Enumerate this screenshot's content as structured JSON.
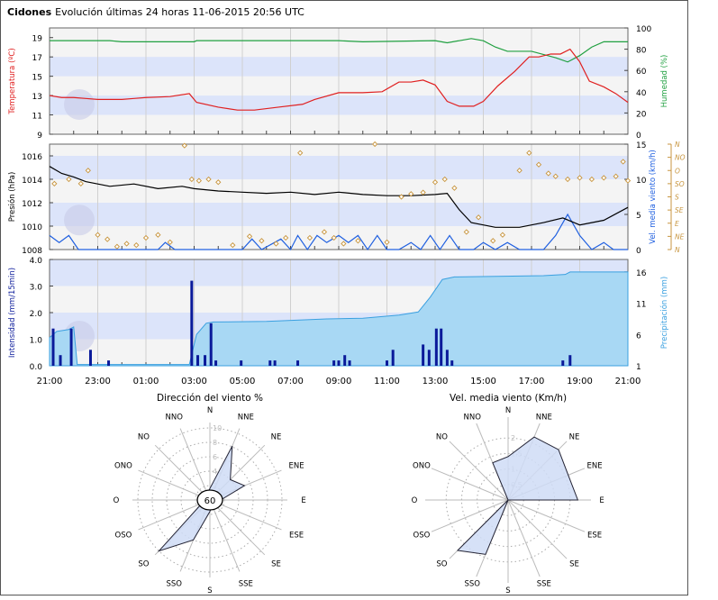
{
  "header": {
    "station": "Cidones",
    "subtitle": "Evolución últimas 24 horas 11-06-2015 20:56 UTC"
  },
  "x_ticks": [
    "21:00",
    "23:00",
    "01:00",
    "03:00",
    "05:00",
    "07:00",
    "09:00",
    "11:00",
    "13:00",
    "15:00",
    "17:00",
    "19:00",
    "21:00"
  ],
  "colors": {
    "temp": "#e02020",
    "hum": "#20a040",
    "pres": "#000000",
    "wind": "#2060e0",
    "dir": "#c89640",
    "intens": "#0a1a9a",
    "precip": "#3aa0e0"
  },
  "chart_data": [
    {
      "type": "line",
      "title": "Temperatura / Humedad",
      "ylabel": "Temperatura (ºC)",
      "y2label": "Humedad (%)",
      "ylim": [
        9,
        20
      ],
      "yticks": [
        "9",
        "11",
        "13",
        "15",
        "17",
        "19"
      ],
      "y2lim": [
        0,
        100
      ],
      "y2ticks": [
        "0",
        "20",
        "40",
        "60",
        "80",
        "100"
      ],
      "series": [
        {
          "name": "Temperatura",
          "axis": "y",
          "points": [
            [
              0,
              13.0
            ],
            [
              0.5,
              12.8
            ],
            [
              1,
              12.8
            ],
            [
              1.5,
              12.7
            ],
            [
              2,
              12.6
            ],
            [
              3,
              12.6
            ],
            [
              3.5,
              12.7
            ],
            [
              4,
              12.8
            ],
            [
              5,
              12.9
            ],
            [
              5.8,
              13.2
            ],
            [
              6.1,
              12.3
            ],
            [
              7,
              11.8
            ],
            [
              7.8,
              11.5
            ],
            [
              8.5,
              11.5
            ],
            [
              9.5,
              11.8
            ],
            [
              10.5,
              12.1
            ],
            [
              11,
              12.6
            ],
            [
              12,
              13.3
            ],
            [
              13,
              13.3
            ],
            [
              13.8,
              13.4
            ],
            [
              14.5,
              14.4
            ],
            [
              15,
              14.4
            ],
            [
              15.5,
              14.6
            ],
            [
              16,
              14.1
            ],
            [
              16.5,
              12.4
            ],
            [
              17,
              11.9
            ],
            [
              17.6,
              11.9
            ],
            [
              18,
              12.4
            ],
            [
              18.6,
              14.0
            ],
            [
              19.3,
              15.5
            ],
            [
              19.9,
              17.0
            ],
            [
              20.3,
              17.0
            ],
            [
              20.8,
              17.3
            ],
            [
              21.2,
              17.3
            ],
            [
              21.6,
              17.8
            ],
            [
              22,
              16.5
            ],
            [
              22.4,
              14.5
            ],
            [
              23,
              13.9
            ],
            [
              23.5,
              13.2
            ],
            [
              24,
              12.3
            ]
          ]
        },
        {
          "name": "Humedad",
          "axis": "y2",
          "points": [
            [
              0,
              88
            ],
            [
              2.5,
              88
            ],
            [
              3,
              87
            ],
            [
              6,
              87
            ],
            [
              6.1,
              88
            ],
            [
              12,
              88
            ],
            [
              13,
              87
            ],
            [
              16,
              88
            ],
            [
              16.5,
              86
            ],
            [
              17,
              88
            ],
            [
              17.5,
              90
            ],
            [
              18,
              88
            ],
            [
              18.5,
              82
            ],
            [
              19,
              78
            ],
            [
              20,
              78
            ],
            [
              21,
              72
            ],
            [
              21.5,
              68
            ],
            [
              22,
              74
            ],
            [
              22.5,
              82
            ],
            [
              23,
              87
            ],
            [
              24,
              87
            ]
          ]
        }
      ]
    },
    {
      "type": "line",
      "ylabel": "Presión (hPa)",
      "y2label": "Vel. media viento (km/h)",
      "ylim": [
        1008,
        1017
      ],
      "yticks": [
        "1008",
        "1010",
        "1012",
        "1014",
        "1016"
      ],
      "y2lim": [
        0,
        15
      ],
      "y2ticks": [
        "0",
        "5",
        "10",
        "15"
      ],
      "y3ticks": [
        "N",
        "NE",
        "E",
        "SE",
        "S",
        "SO",
        "O",
        "NO",
        "N"
      ],
      "series": [
        {
          "name": "Presión",
          "axis": "y",
          "points": [
            [
              0,
              1015.1
            ],
            [
              0.5,
              1014.5
            ],
            [
              1,
              1014.2
            ],
            [
              1.5,
              1013.8
            ],
            [
              2.5,
              1013.4
            ],
            [
              3.5,
              1013.6
            ],
            [
              4.5,
              1013.2
            ],
            [
              5.5,
              1013.4
            ],
            [
              6,
              1013.2
            ],
            [
              7,
              1013.0
            ],
            [
              8,
              1012.9
            ],
            [
              9,
              1012.8
            ],
            [
              10,
              1012.9
            ],
            [
              11,
              1012.7
            ],
            [
              12,
              1012.9
            ],
            [
              13,
              1012.7
            ],
            [
              14,
              1012.6
            ],
            [
              15,
              1012.6
            ],
            [
              16,
              1012.7
            ],
            [
              16.5,
              1012.8
            ],
            [
              17,
              1011.4
            ],
            [
              17.5,
              1010.3
            ],
            [
              18.5,
              1009.9
            ],
            [
              19.5,
              1009.9
            ],
            [
              20.5,
              1010.3
            ],
            [
              21.3,
              1010.7
            ],
            [
              22,
              1010.1
            ],
            [
              23,
              1010.5
            ],
            [
              24,
              1011.6
            ]
          ]
        },
        {
          "name": "Vel. media viento",
          "axis": "y2",
          "points": [
            [
              0,
              2
            ],
            [
              0.4,
              1
            ],
            [
              0.8,
              2
            ],
            [
              1.2,
              0
            ],
            [
              4.5,
              0
            ],
            [
              4.8,
              1
            ],
            [
              5.2,
              0
            ],
            [
              8,
              0
            ],
            [
              8.4,
              1.5
            ],
            [
              8.8,
              0
            ],
            [
              9.6,
              1.5
            ],
            [
              10,
              0
            ],
            [
              10.3,
              2
            ],
            [
              10.7,
              0
            ],
            [
              11.1,
              2
            ],
            [
              11.5,
              1
            ],
            [
              12,
              2
            ],
            [
              12.4,
              1
            ],
            [
              12.8,
              2
            ],
            [
              13.2,
              0
            ],
            [
              13.6,
              2
            ],
            [
              14,
              0
            ],
            [
              14.5,
              0
            ],
            [
              15,
              1
            ],
            [
              15.4,
              0
            ],
            [
              15.8,
              2
            ],
            [
              16.2,
              0
            ],
            [
              16.6,
              2
            ],
            [
              17,
              0
            ],
            [
              17.6,
              0
            ],
            [
              18,
              1
            ],
            [
              18.5,
              0
            ],
            [
              19,
              1
            ],
            [
              19.5,
              0
            ],
            [
              20.5,
              0
            ],
            [
              21,
              2
            ],
            [
              21.5,
              5
            ],
            [
              22,
              2
            ],
            [
              22.5,
              0
            ],
            [
              23,
              1
            ],
            [
              23.4,
              0
            ],
            [
              24,
              0
            ]
          ]
        },
        {
          "name": "Dirección viento",
          "axis": "y3",
          "marker": "diamond",
          "points": [
            [
              0.2,
              225
            ],
            [
              0.8,
              240
            ],
            [
              1.3,
              225
            ],
            [
              1.6,
              270
            ],
            [
              2,
              50
            ],
            [
              2.4,
              35
            ],
            [
              2.8,
              10
            ],
            [
              3.2,
              20
            ],
            [
              3.6,
              15
            ],
            [
              4,
              40
            ],
            [
              4.5,
              50
            ],
            [
              5,
              25
            ],
            [
              5.6,
              355
            ],
            [
              5.9,
              240
            ],
            [
              6.2,
              235
            ],
            [
              6.6,
              240
            ],
            [
              7,
              230
            ],
            [
              7.6,
              15
            ],
            [
              8.3,
              45
            ],
            [
              8.8,
              30
            ],
            [
              9.4,
              20
            ],
            [
              9.8,
              40
            ],
            [
              10.4,
              330
            ],
            [
              10.8,
              40
            ],
            [
              11.4,
              60
            ],
            [
              11.8,
              40
            ],
            [
              12.2,
              20
            ],
            [
              12.8,
              30
            ],
            [
              13.5,
              360
            ],
            [
              14,
              25
            ],
            [
              14.6,
              180
            ],
            [
              15,
              190
            ],
            [
              15.5,
              195
            ],
            [
              16,
              230
            ],
            [
              16.4,
              240
            ],
            [
              16.8,
              210
            ],
            [
              17.3,
              60
            ],
            [
              17.8,
              110
            ],
            [
              18.4,
              30
            ],
            [
              18.8,
              50
            ],
            [
              19.5,
              270
            ],
            [
              19.9,
              330
            ],
            [
              20.3,
              290
            ],
            [
              20.7,
              260
            ],
            [
              21,
              250
            ],
            [
              21.5,
              240
            ],
            [
              22,
              245
            ],
            [
              22.5,
              240
            ],
            [
              23,
              245
            ],
            [
              23.5,
              250
            ],
            [
              23.8,
              300
            ],
            [
              24,
              235
            ]
          ]
        }
      ]
    },
    {
      "type": "bar",
      "ylabel": "Intensidad (mm/15min)",
      "y2label": "Precipitación (mm)",
      "ylim": [
        0,
        4.0
      ],
      "yticks": [
        "0.0",
        "1.0",
        "2.0",
        "3.0",
        "4.0"
      ],
      "y2lim": [
        1,
        18
      ],
      "y2ticks": [
        "1",
        "6",
        "11",
        "16"
      ],
      "series": [
        {
          "name": "Intensidad",
          "axis": "y",
          "points": [
            [
              0.15,
              1.4
            ],
            [
              0.45,
              0.4
            ],
            [
              0.9,
              1.4
            ],
            [
              1.7,
              0.6
            ],
            [
              2.45,
              0.2
            ],
            [
              5.9,
              3.2
            ],
            [
              6.15,
              0.4
            ],
            [
              6.45,
              0.4
            ],
            [
              6.7,
              1.6
            ],
            [
              6.9,
              0.2
            ],
            [
              7.95,
              0.2
            ],
            [
              9.15,
              0.2
            ],
            [
              9.35,
              0.2
            ],
            [
              10.3,
              0.2
            ],
            [
              11.8,
              0.2
            ],
            [
              12.0,
              0.2
            ],
            [
              12.25,
              0.4
            ],
            [
              12.45,
              0.2
            ],
            [
              14.0,
              0.2
            ],
            [
              14.25,
              0.6
            ],
            [
              15.5,
              0.8
            ],
            [
              15.75,
              0.6
            ],
            [
              16.05,
              1.4
            ],
            [
              16.25,
              1.4
            ],
            [
              16.5,
              0.6
            ],
            [
              16.7,
              0.2
            ],
            [
              21.3,
              0.2
            ],
            [
              21.6,
              0.4
            ]
          ]
        },
        {
          "name": "Precipitación acumulada",
          "axis": "y2",
          "type": "area",
          "points": [
            [
              0,
              5.5
            ],
            [
              0.3,
              6.5
            ],
            [
              0.8,
              6.8
            ],
            [
              1.0,
              7.2
            ],
            [
              1.15,
              1.2
            ],
            [
              5.8,
              1.2
            ],
            [
              6.1,
              6
            ],
            [
              6.5,
              7.8
            ],
            [
              6.8,
              8.0
            ],
            [
              9,
              8.1
            ],
            [
              11.5,
              8.5
            ],
            [
              13,
              8.6
            ],
            [
              14.5,
              9.1
            ],
            [
              15.3,
              9.6
            ],
            [
              15.8,
              12
            ],
            [
              16.3,
              14.8
            ],
            [
              16.8,
              15.2
            ],
            [
              20.5,
              15.4
            ],
            [
              21.4,
              15.6
            ],
            [
              21.6,
              16.0
            ],
            [
              24,
              16.0
            ]
          ]
        }
      ]
    },
    {
      "type": "radar",
      "title": "Dirección del viento %",
      "calm_label": "60",
      "directions": [
        "N",
        "NNE",
        "NE",
        "ENE",
        "E",
        "ESE",
        "SE",
        "SSE",
        "S",
        "SSO",
        "SO",
        "OSO",
        "O",
        "ONO",
        "NO",
        "NNO"
      ],
      "rlabels": [
        "2",
        "4",
        "6",
        "8",
        "10"
      ],
      "rmax": 10,
      "values": [
        1.6,
        8.1,
        4.0,
        5.2,
        1.5,
        1.0,
        0.8,
        0.8,
        1.6,
        6.0,
        10.0,
        1.2,
        1.2,
        1.0,
        1.0,
        1.0
      ]
    },
    {
      "type": "radar",
      "title": "Vel. media viento (Km/h)",
      "directions": [
        "N",
        "NNE",
        "NE",
        "ENE",
        "E",
        "ESE",
        "SE",
        "SSE",
        "S",
        "SSO",
        "SO",
        "OSO",
        "O",
        "ONO",
        "NO",
        "NNO"
      ],
      "rlabels": [
        "0.5",
        "1",
        "1.5",
        "2"
      ],
      "rmax": 2.5,
      "values": [
        1.4,
        2.2,
        2.3,
        2.1,
        2.25,
        0,
        0,
        0,
        0,
        1.9,
        2.3,
        0,
        0,
        0,
        0,
        1.3
      ]
    }
  ]
}
